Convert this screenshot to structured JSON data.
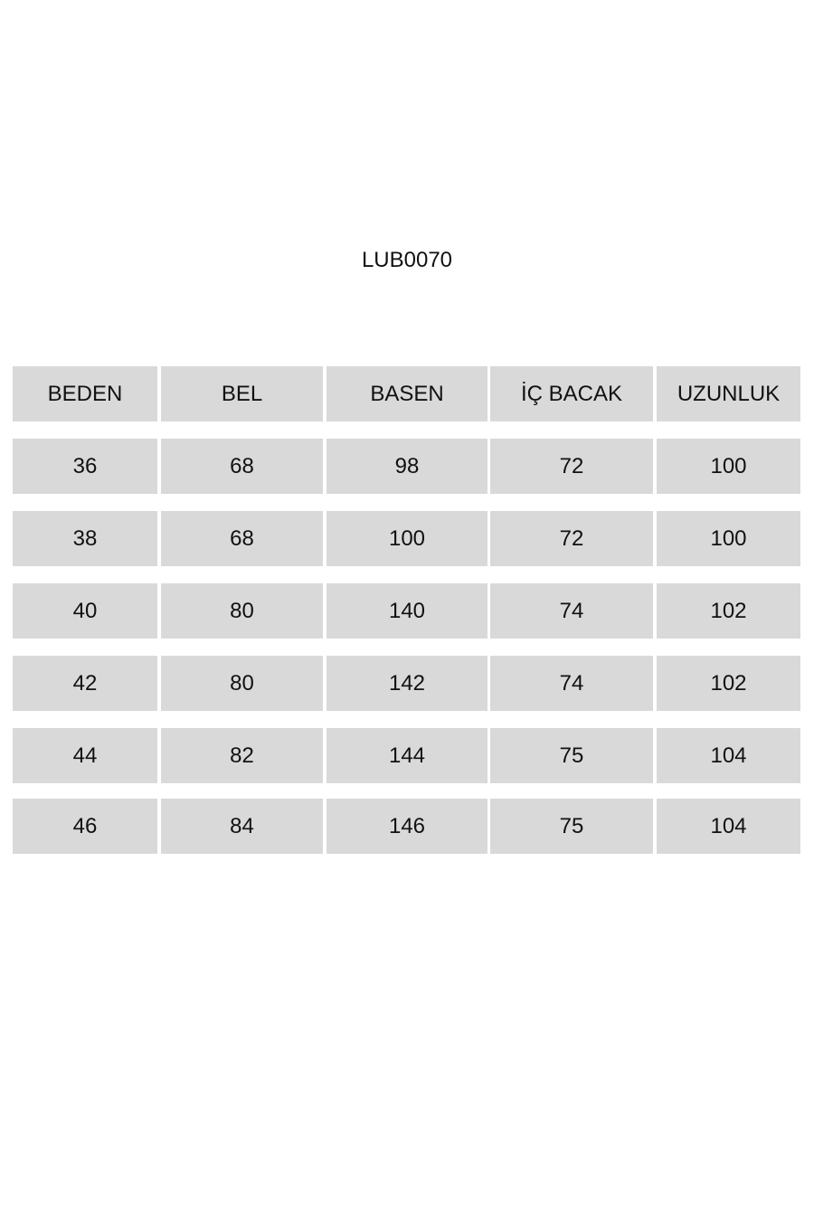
{
  "title": "LUB0070",
  "table": {
    "headers": [
      "BEDEN",
      "BEL",
      "BASEN",
      "İÇ BACAK",
      "UZUNLUK"
    ],
    "rows": [
      [
        "36",
        "68",
        "98",
        "72",
        "100"
      ],
      [
        "38",
        "68",
        "100",
        "72",
        "100"
      ],
      [
        "40",
        "80",
        "140",
        "74",
        "102"
      ],
      [
        "42",
        "80",
        "142",
        "74",
        "102"
      ],
      [
        "44",
        "82",
        "144",
        "75",
        "104"
      ],
      [
        "46",
        "84",
        "146",
        "75",
        "104"
      ]
    ]
  }
}
